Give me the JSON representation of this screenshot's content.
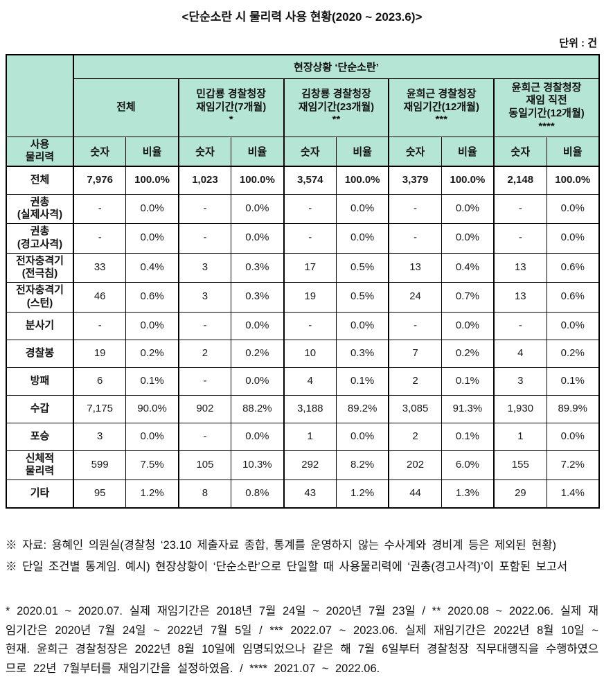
{
  "title": "<단순소란 시 물리력 사용 현황(2020 ~ 2023.6)>",
  "unit_label": "단위 : 건",
  "colors": {
    "header_bg": "#b5e6d5",
    "border": "#000000"
  },
  "table": {
    "top_header": "현장상황 ‘단순소란’",
    "row_header_title": "사용\n물리력",
    "groups": [
      {
        "label": "전체"
      },
      {
        "label": "민갑룡 경찰청장\n재임기간(7개월)\n*"
      },
      {
        "label": "김창룡 경찰청장\n재임기간(23개월)\n**"
      },
      {
        "label": "윤희근 경찰청장\n재임기간(12개월)\n***"
      },
      {
        "label": "윤희근 경찰청장\n재임 직전\n동일기간(12개월)\n****"
      }
    ],
    "sub_headers": {
      "count": "숫자",
      "ratio": "비율"
    },
    "rows": [
      {
        "label": "전체",
        "bold": true,
        "values": [
          "7,976",
          "100.0%",
          "1,023",
          "100.0%",
          "3,574",
          "100.0%",
          "3,379",
          "100.0%",
          "2,148",
          "100.0%"
        ]
      },
      {
        "label": "권총\n(실제사격)",
        "values": [
          "-",
          "0.0%",
          "-",
          "0.0%",
          "-",
          "0.0%",
          "-",
          "0.0%",
          "-",
          "0.0%"
        ]
      },
      {
        "label": "권총\n(경고사격)",
        "values": [
          "-",
          "0.0%",
          "-",
          "0.0%",
          "-",
          "0.0%",
          "-",
          "0.0%",
          "-",
          "0.0%"
        ]
      },
      {
        "label": "전자충격기\n(전극침)",
        "values": [
          "33",
          "0.4%",
          "3",
          "0.3%",
          "17",
          "0.5%",
          "13",
          "0.4%",
          "13",
          "0.6%"
        ]
      },
      {
        "label": "전자충격기\n(스턴)",
        "values": [
          "46",
          "0.6%",
          "3",
          "0.3%",
          "19",
          "0.5%",
          "24",
          "0.7%",
          "13",
          "0.6%"
        ]
      },
      {
        "label": "분사기",
        "values": [
          "-",
          "0.0%",
          "-",
          "0.0%",
          "-",
          "0.0%",
          "-",
          "0.0%",
          "-",
          "0.0%"
        ]
      },
      {
        "label": "경찰봉",
        "values": [
          "19",
          "0.2%",
          "2",
          "0.2%",
          "10",
          "0.3%",
          "7",
          "0.2%",
          "4",
          "0.2%"
        ]
      },
      {
        "label": "방패",
        "values": [
          "6",
          "0.1%",
          "-",
          "0.0%",
          "4",
          "0.1%",
          "2",
          "0.1%",
          "3",
          "0.1%"
        ]
      },
      {
        "label": "수갑",
        "values": [
          "7,175",
          "90.0%",
          "902",
          "88.2%",
          "3,188",
          "89.2%",
          "3,085",
          "91.3%",
          "1,930",
          "89.9%"
        ]
      },
      {
        "label": "포승",
        "values": [
          "3",
          "0.0%",
          "-",
          "0.0%",
          "1",
          "0.0%",
          "2",
          "0.1%",
          "1",
          "0.0%"
        ]
      },
      {
        "label": "신체적\n물리력",
        "values": [
          "599",
          "7.5%",
          "105",
          "10.3%",
          "292",
          "8.2%",
          "202",
          "6.0%",
          "155",
          "7.2%"
        ]
      },
      {
        "label": "기타",
        "values": [
          "95",
          "1.2%",
          "8",
          "0.8%",
          "43",
          "1.2%",
          "44",
          "1.3%",
          "29",
          "1.4%"
        ]
      }
    ]
  },
  "footnotes": {
    "source_line1": "※ 자료: 용혜인 의원실(경찰청 ‘23.10 제출자료 종합, 통계를 운영하지 않는 수사계와 경비계 등은 제외된 현황)",
    "source_line2": "※ 단일 조건별 통계임. 예시)  현장상황이 ‘단순소란’으로 단일할 때 사용물리력에 ‘권총(경고사격)’이 포함된 보고서",
    "period_note": "* 2020.01 ~ 2020.07. 실제 재임기간은 2018년 7월 24일 ~ 2020년 7월 23일 / ** 2020.08 ~ 2022.06. 실제 재임기간은 2020년 7월 24일 ~ 2022년 7월 5일 / *** 2022.07 ~ 2023.06. 실제 재임기간은 2022년 8월 10일 ~ 현재. 윤희근 경찰청장은 2022년 8월 10일에 임명되었으나 같은 해 7월 6일부터 경찰청장 직무대행직을 수행하였으므로 22년 7월부터를 재임기간을 설정하였음. / **** 2021.07 ~ 2022.06."
  }
}
